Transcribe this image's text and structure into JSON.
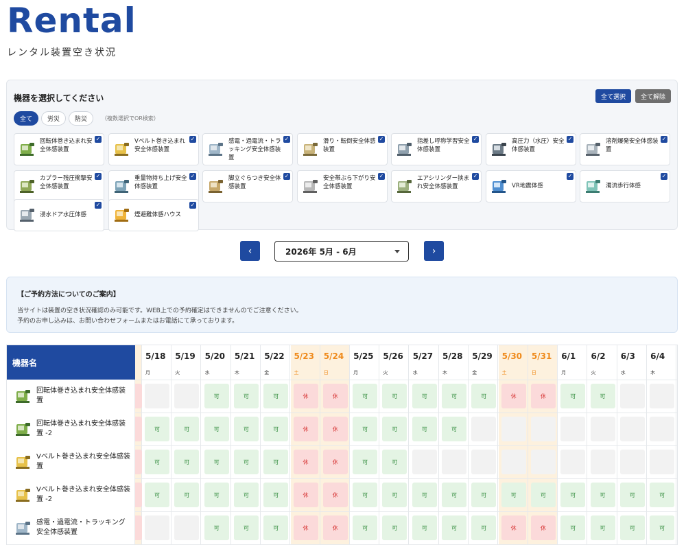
{
  "header": {
    "title": "Rental",
    "subtitle": "レンタル装置空き状況"
  },
  "selector": {
    "title": "機器を選択してください",
    "select_all": "全て選択",
    "clear_all": "全て解除",
    "filters": [
      "全て",
      "労災",
      "防災"
    ],
    "filter_note": "（複数選択でOR検索）",
    "devices": [
      "回転体巻き込まれ安全体感装置",
      "Vベルト巻き込まれ安全体感装置",
      "感電・過電流・トラッキング安全体感装置",
      "滑り・転倒安全体感装置",
      "指差し呼称学習安全体感装置",
      "高圧力（水圧）安全体感装置",
      "溶剤爆発安全体感装置",
      "カプラー残圧衝撃安全体感装置",
      "重量物持ち上げ安全体感装置",
      "脚立ぐらつき安全体感装置",
      "安全帯ぶら下がり安全体感装置",
      "エアシリンダー挟まれ安全体感装置",
      "VR地震体感",
      "濁流歩行体感",
      "浸水ドア水圧体感",
      "煙避難体感ハウス"
    ]
  },
  "month_nav": {
    "current": "2026年 5月 - 6月",
    "prev": "‹",
    "next": "›"
  },
  "notice": {
    "title": "【ご予約方法についてのご案内】",
    "line1": "当サイトは装置の空き状況確認のみ可能です。WEB上での予約確定はできませんのでご注意ください。",
    "line2": "予約のお申し込みは、お問い合わせフォームまたはお電話にて承っております。"
  },
  "schedule": {
    "name_header": "機器名",
    "ok_label": "可",
    "off_label": "休",
    "dates": [
      {
        "d": "5/18",
        "w": "月",
        "weekend": false
      },
      {
        "d": "5/19",
        "w": "火",
        "weekend": false
      },
      {
        "d": "5/20",
        "w": "水",
        "weekend": false
      },
      {
        "d": "5/21",
        "w": "木",
        "weekend": false
      },
      {
        "d": "5/22",
        "w": "金",
        "weekend": false
      },
      {
        "d": "5/23",
        "w": "土",
        "weekend": true
      },
      {
        "d": "5/24",
        "w": "日",
        "weekend": true
      },
      {
        "d": "5/25",
        "w": "月",
        "weekend": false
      },
      {
        "d": "5/26",
        "w": "火",
        "weekend": false
      },
      {
        "d": "5/27",
        "w": "水",
        "weekend": false
      },
      {
        "d": "5/28",
        "w": "木",
        "weekend": false
      },
      {
        "d": "5/29",
        "w": "金",
        "weekend": false
      },
      {
        "d": "5/30",
        "w": "土",
        "weekend": true
      },
      {
        "d": "5/31",
        "w": "日",
        "weekend": true
      },
      {
        "d": "6/1",
        "w": "月",
        "weekend": false
      },
      {
        "d": "6/2",
        "w": "火",
        "weekend": false
      },
      {
        "d": "6/3",
        "w": "水",
        "weekend": false
      },
      {
        "d": "6/4",
        "w": "木",
        "weekend": false
      }
    ],
    "rows": [
      {
        "name": "回転体巻き込まれ安全体感装置",
        "status": "NNOOOXXOOOOOXXOONN"
      },
      {
        "name": "回転体巻き込まれ安全体感装置 -2",
        "status": "OOOOOXXOOOONNNNNNN"
      },
      {
        "name": "Vベルト巻き込まれ安全体感装置",
        "status": "OOOOOXXOONNNNNNNNN"
      },
      {
        "name": "Vベルト巻き込まれ安全体感装置 -2",
        "status": "OOOOOXXOOOOOOOOOOO"
      },
      {
        "name": "感電・過電流・トラッキング安全体感装置",
        "status": "NNOOOXXOOOOOXXOOOO"
      }
    ]
  },
  "colors": {
    "brand": "#1f4aa0",
    "weekend": "#ef8a1b",
    "ok_bg": "#e4f4e4",
    "off_bg": "#fbdada"
  }
}
